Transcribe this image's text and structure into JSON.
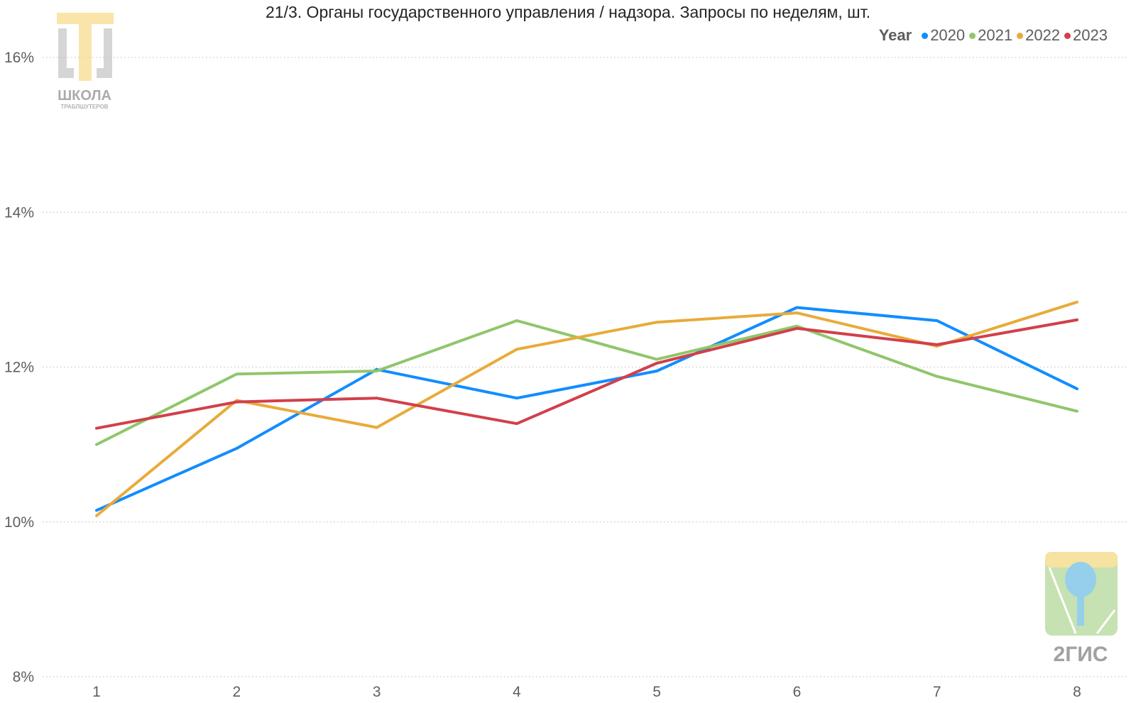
{
  "chart_data": {
    "type": "line",
    "title": "21/3. Органы государственного управления / надзора. Запросы по неделям, шт.",
    "legend_title": "Year",
    "legend_position": "top-right",
    "x": [
      1,
      2,
      3,
      4,
      5,
      6,
      7,
      8
    ],
    "x_tick_labels": [
      "1",
      "2",
      "3",
      "4",
      "5",
      "6",
      "7",
      "8"
    ],
    "ylim": [
      8,
      16
    ],
    "y_ticks": [
      8,
      10,
      12,
      14,
      16
    ],
    "y_tick_labels": [
      "8%",
      "10%",
      "12%",
      "14%",
      "16%"
    ],
    "y_unit": "%",
    "grid": "horizontal dotted",
    "series": [
      {
        "name": "2020",
        "color": "#118dff",
        "values": [
          10.15,
          10.95,
          11.97,
          11.6,
          11.95,
          12.77,
          12.6,
          11.72
        ]
      },
      {
        "name": "2021",
        "color": "#8fc66b",
        "values": [
          11.0,
          11.91,
          11.95,
          12.6,
          12.1,
          12.53,
          11.88,
          11.43
        ]
      },
      {
        "name": "2022",
        "color": "#e8ab3a",
        "values": [
          10.08,
          11.57,
          11.22,
          12.23,
          12.58,
          12.7,
          12.27,
          12.84
        ]
      },
      {
        "name": "2023",
        "color": "#d1404b",
        "values": [
          11.21,
          11.55,
          11.6,
          11.27,
          12.05,
          12.5,
          12.29,
          12.61
        ]
      }
    ]
  },
  "watermarks": {
    "school_logo": {
      "icon": "school-logo-icon",
      "text": "ШКОЛА",
      "subtext": "ТРАБЛШУТЕРОВ"
    },
    "brand_logo": {
      "icon": "2gis-logo-icon",
      "text": "2ГИС"
    }
  }
}
